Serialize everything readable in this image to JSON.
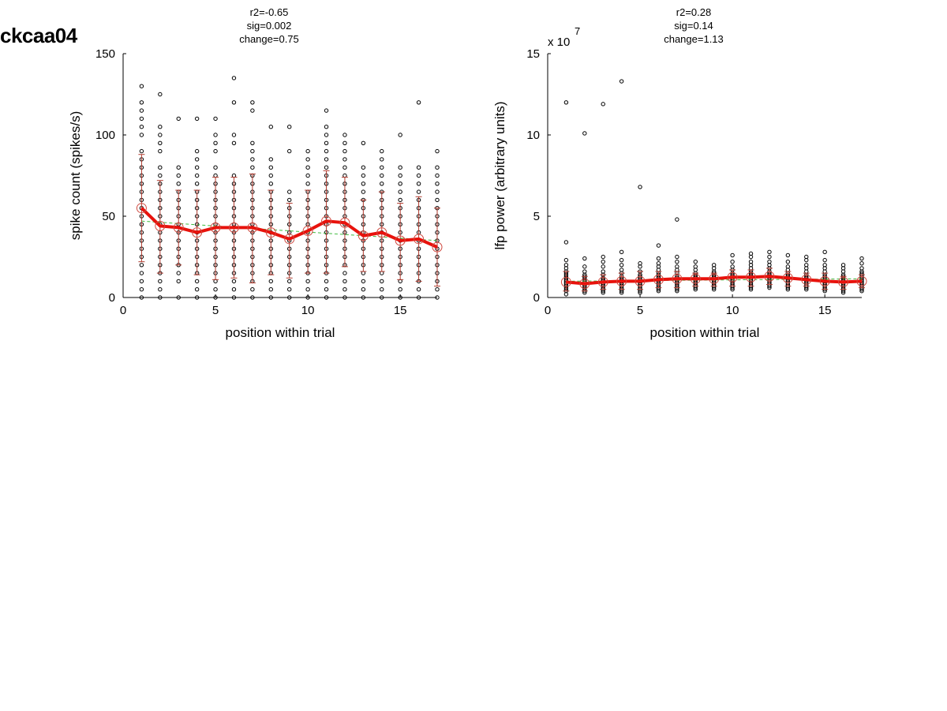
{
  "page_title": "ckcaa04",
  "colors": {
    "dots": "#000000",
    "trend": "#e8120c",
    "errorbar": "#b03a2e",
    "fit": "#3cb93c",
    "mean_circle": "#d04a40"
  },
  "chart_data": [
    {
      "type": "scatter",
      "stats": [
        "r2=-0.65",
        "sig=0.002",
        "change=0.75"
      ],
      "xlabel": "position within trial",
      "ylabel": "spike count (spikes/s)",
      "exponent_label": "",
      "xlim": [
        0,
        17
      ],
      "ylim": [
        0,
        150
      ],
      "xticks": [
        0,
        5,
        10,
        15
      ],
      "yticks": [
        0,
        50,
        100,
        150
      ],
      "tick_labels_x": [
        "0",
        "5",
        "10",
        "15"
      ],
      "tick_labels_y": [
        "0",
        "50",
        "100",
        "150"
      ],
      "grid": false,
      "x": [
        1,
        2,
        3,
        4,
        5,
        6,
        7,
        8,
        9,
        10,
        11,
        12,
        13,
        14,
        15,
        16,
        17
      ],
      "means": [
        55,
        44,
        43,
        40,
        43,
        43,
        43,
        40,
        36,
        41,
        47,
        46,
        38,
        40,
        35,
        36,
        31
      ],
      "err_upper": [
        88,
        72,
        66,
        66,
        74,
        74,
        76,
        66,
        58,
        66,
        78,
        74,
        60,
        65,
        58,
        62,
        55
      ],
      "err_lower": [
        22,
        15,
        20,
        14,
        11,
        12,
        9,
        14,
        12,
        15,
        15,
        19,
        16,
        16,
        11,
        10,
        7
      ],
      "fit_line": {
        "x": [
          1,
          17
        ],
        "y": [
          47,
          35
        ]
      },
      "points": [
        [
          0,
          5,
          10,
          15,
          20,
          25,
          30,
          35,
          40,
          45,
          50,
          55,
          60,
          65,
          70,
          75,
          80,
          85,
          90,
          100,
          105,
          110,
          115,
          120,
          130
        ],
        [
          0,
          5,
          10,
          15,
          20,
          25,
          30,
          35,
          40,
          45,
          50,
          55,
          60,
          65,
          70,
          75,
          80,
          90,
          95,
          100,
          105,
          125
        ],
        [
          0,
          10,
          15,
          20,
          25,
          30,
          35,
          40,
          45,
          50,
          55,
          60,
          65,
          70,
          75,
          80,
          110
        ],
        [
          0,
          5,
          10,
          15,
          20,
          25,
          30,
          35,
          40,
          45,
          50,
          55,
          60,
          65,
          70,
          75,
          80,
          85,
          90,
          110
        ],
        [
          0,
          5,
          10,
          15,
          20,
          25,
          30,
          35,
          40,
          45,
          50,
          55,
          60,
          65,
          70,
          75,
          80,
          90,
          95,
          100,
          110
        ],
        [
          0,
          5,
          10,
          15,
          20,
          25,
          30,
          35,
          40,
          45,
          50,
          55,
          60,
          65,
          70,
          75,
          95,
          100,
          120,
          135
        ],
        [
          0,
          5,
          10,
          15,
          20,
          25,
          30,
          35,
          40,
          45,
          50,
          55,
          60,
          65,
          70,
          75,
          80,
          85,
          90,
          95,
          115,
          120
        ],
        [
          0,
          5,
          10,
          15,
          20,
          25,
          30,
          35,
          40,
          45,
          50,
          55,
          60,
          65,
          70,
          75,
          80,
          85,
          105
        ],
        [
          0,
          5,
          10,
          15,
          20,
          25,
          30,
          35,
          40,
          45,
          50,
          55,
          60,
          65,
          90,
          105
        ],
        [
          0,
          5,
          10,
          15,
          20,
          25,
          30,
          35,
          40,
          45,
          50,
          55,
          60,
          65,
          70,
          75,
          80,
          85,
          90
        ],
        [
          0,
          5,
          10,
          15,
          20,
          25,
          30,
          35,
          40,
          45,
          50,
          55,
          60,
          65,
          70,
          75,
          80,
          85,
          90,
          95,
          100,
          105,
          115
        ],
        [
          0,
          5,
          10,
          15,
          20,
          25,
          30,
          35,
          40,
          45,
          50,
          55,
          60,
          65,
          70,
          75,
          80,
          85,
          90,
          95,
          100
        ],
        [
          0,
          5,
          10,
          15,
          20,
          25,
          30,
          35,
          40,
          45,
          50,
          55,
          60,
          65,
          70,
          75,
          80,
          95
        ],
        [
          0,
          5,
          10,
          15,
          20,
          25,
          30,
          35,
          40,
          45,
          50,
          55,
          60,
          65,
          70,
          75,
          80,
          85,
          90
        ],
        [
          0,
          5,
          10,
          15,
          20,
          25,
          30,
          35,
          40,
          45,
          50,
          55,
          60,
          65,
          70,
          75,
          80,
          100
        ],
        [
          0,
          5,
          10,
          15,
          20,
          25,
          30,
          35,
          40,
          45,
          50,
          55,
          60,
          65,
          70,
          75,
          80,
          120
        ],
        [
          0,
          5,
          10,
          15,
          20,
          25,
          30,
          35,
          40,
          45,
          50,
          55,
          60,
          65,
          70,
          75,
          80,
          90
        ]
      ]
    },
    {
      "type": "scatter",
      "stats": [
        "r2=0.28",
        "sig=0.14",
        "change=1.13"
      ],
      "xlabel": "position within trial",
      "ylabel": "lfp power (arbitrary units)",
      "exponent_label": "x 10",
      "exponent": "7",
      "xlim": [
        0,
        17
      ],
      "ylim": [
        0,
        15
      ],
      "xticks": [
        0,
        5,
        10,
        15
      ],
      "yticks": [
        0,
        5,
        10,
        15
      ],
      "tick_labels_x": [
        "0",
        "5",
        "10",
        "15"
      ],
      "tick_labels_y": [
        "0",
        "5",
        "10",
        "15"
      ],
      "grid": false,
      "x": [
        1,
        2,
        3,
        4,
        5,
        6,
        7,
        8,
        9,
        10,
        11,
        12,
        13,
        14,
        15,
        16,
        17
      ],
      "means": [
        0.95,
        0.85,
        0.95,
        1.0,
        1.0,
        1.1,
        1.15,
        1.15,
        1.15,
        1.25,
        1.25,
        1.3,
        1.2,
        1.1,
        1.0,
        0.95,
        1.0
      ],
      "err_upper": [
        1.6,
        1.3,
        1.4,
        1.5,
        1.6,
        1.6,
        1.6,
        1.5,
        1.5,
        1.7,
        1.7,
        1.8,
        1.6,
        1.5,
        1.5,
        1.3,
        1.4
      ],
      "err_lower": [
        0.4,
        0.4,
        0.5,
        0.5,
        0.5,
        0.6,
        0.6,
        0.7,
        0.7,
        0.7,
        0.7,
        0.8,
        0.7,
        0.7,
        0.5,
        0.5,
        0.6
      ],
      "fit_line": {
        "x": [
          1,
          17
        ],
        "y": [
          1.0,
          1.15
        ]
      },
      "points": [
        [
          0.2,
          0.4,
          0.5,
          0.6,
          0.7,
          0.8,
          0.9,
          1.0,
          1.1,
          1.2,
          1.3,
          1.4,
          1.5,
          1.6,
          1.8,
          2.0,
          2.3,
          3.4,
          12.0
        ],
        [
          0.3,
          0.4,
          0.5,
          0.6,
          0.7,
          0.8,
          0.9,
          1.0,
          1.1,
          1.2,
          1.3,
          1.4,
          1.6,
          1.9,
          2.4,
          10.1
        ],
        [
          0.3,
          0.4,
          0.5,
          0.6,
          0.7,
          0.8,
          0.9,
          1.0,
          1.1,
          1.2,
          1.4,
          1.6,
          1.9,
          2.2,
          2.5,
          11.9
        ],
        [
          0.3,
          0.4,
          0.5,
          0.6,
          0.7,
          0.8,
          0.9,
          1.0,
          1.1,
          1.2,
          1.3,
          1.5,
          1.7,
          2.0,
          2.3,
          2.8,
          13.3
        ],
        [
          0.3,
          0.4,
          0.5,
          0.6,
          0.7,
          0.8,
          0.9,
          1.0,
          1.1,
          1.2,
          1.3,
          1.4,
          1.6,
          1.9,
          2.1,
          6.8
        ],
        [
          0.4,
          0.5,
          0.6,
          0.7,
          0.8,
          0.9,
          1.0,
          1.1,
          1.2,
          1.3,
          1.4,
          1.5,
          1.7,
          1.9,
          2.1,
          2.4,
          3.2
        ],
        [
          0.4,
          0.5,
          0.6,
          0.7,
          0.8,
          0.9,
          1.0,
          1.1,
          1.2,
          1.3,
          1.5,
          1.7,
          1.9,
          2.2,
          2.5,
          4.8
        ],
        [
          0.5,
          0.6,
          0.7,
          0.8,
          0.9,
          1.0,
          1.1,
          1.2,
          1.3,
          1.4,
          1.5,
          1.7,
          1.9,
          2.2
        ],
        [
          0.5,
          0.6,
          0.7,
          0.8,
          0.9,
          1.0,
          1.1,
          1.2,
          1.3,
          1.4,
          1.5,
          1.6,
          1.8,
          2.0
        ],
        [
          0.5,
          0.6,
          0.7,
          0.8,
          0.9,
          1.0,
          1.1,
          1.2,
          1.3,
          1.4,
          1.5,
          1.7,
          1.9,
          2.2,
          2.6
        ],
        [
          0.5,
          0.6,
          0.7,
          0.8,
          0.9,
          1.0,
          1.1,
          1.2,
          1.3,
          1.4,
          1.5,
          1.6,
          1.8,
          2.0,
          2.2,
          2.5,
          2.7
        ],
        [
          0.6,
          0.7,
          0.8,
          0.9,
          1.0,
          1.1,
          1.2,
          1.3,
          1.4,
          1.5,
          1.6,
          1.8,
          2.0,
          2.2,
          2.5,
          2.8
        ],
        [
          0.5,
          0.6,
          0.7,
          0.8,
          0.9,
          1.0,
          1.1,
          1.2,
          1.3,
          1.4,
          1.5,
          1.7,
          1.9,
          2.2,
          2.6
        ],
        [
          0.5,
          0.6,
          0.7,
          0.8,
          0.9,
          1.0,
          1.1,
          1.2,
          1.3,
          1.4,
          1.6,
          1.8,
          2.0,
          2.3,
          2.5
        ],
        [
          0.4,
          0.5,
          0.6,
          0.7,
          0.8,
          0.9,
          1.0,
          1.1,
          1.2,
          1.3,
          1.4,
          1.6,
          1.8,
          2.0,
          2.3,
          2.8
        ],
        [
          0.3,
          0.4,
          0.5,
          0.6,
          0.7,
          0.8,
          0.9,
          1.0,
          1.1,
          1.2,
          1.3,
          1.4,
          1.6,
          1.8,
          2.0
        ],
        [
          0.4,
          0.5,
          0.6,
          0.7,
          0.8,
          0.9,
          1.0,
          1.1,
          1.2,
          1.3,
          1.4,
          1.5,
          1.6,
          1.8,
          2.1,
          2.4
        ]
      ]
    }
  ]
}
